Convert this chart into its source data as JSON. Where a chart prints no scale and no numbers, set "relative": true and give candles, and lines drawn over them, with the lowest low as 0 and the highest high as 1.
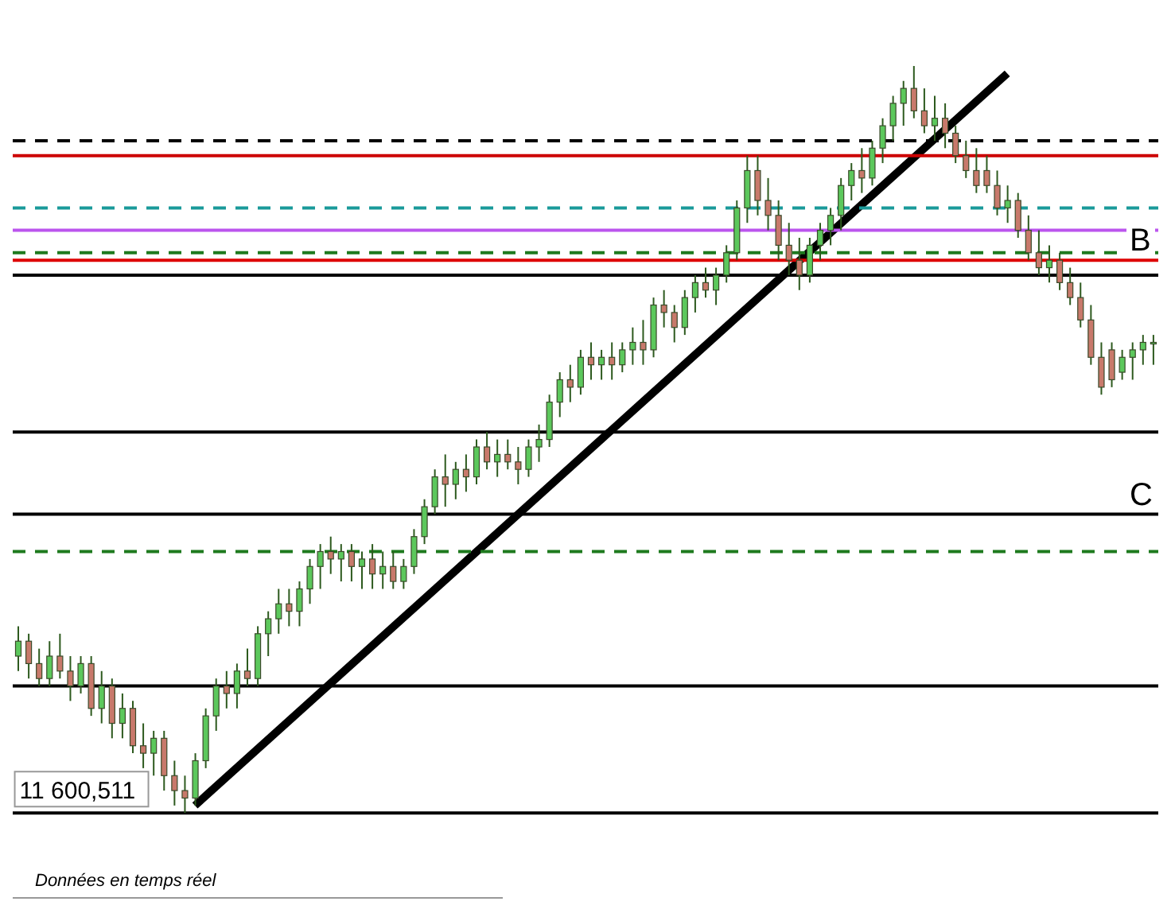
{
  "chart_data": {
    "type": "candlestick",
    "relative": true,
    "tick_labels": false,
    "categories": [
      null,
      null,
      null,
      null,
      null,
      null,
      null,
      null,
      null,
      null,
      null,
      null,
      null,
      null,
      null,
      null,
      null,
      null,
      null,
      null,
      null,
      null,
      null,
      null,
      null,
      null,
      null,
      null,
      null,
      null,
      null,
      null,
      null,
      null,
      null,
      null,
      null,
      null,
      null,
      null,
      null,
      null,
      null,
      null,
      null,
      null,
      null,
      null,
      null,
      null,
      null,
      null,
      null,
      null,
      null,
      null,
      null,
      null,
      null,
      null,
      null,
      null,
      null,
      null,
      null,
      null,
      null,
      null,
      null,
      null,
      null,
      null,
      null,
      null,
      null,
      null,
      null,
      null,
      null,
      null,
      null,
      null,
      null,
      null,
      null,
      null,
      null,
      null,
      null,
      null,
      null,
      null,
      null,
      null,
      null,
      null,
      null,
      null,
      null,
      null,
      null,
      null,
      null,
      null,
      null,
      null,
      null,
      null,
      null,
      null
    ],
    "ohlc": [
      [
        0.21,
        0.25,
        0.19,
        0.23
      ],
      [
        0.23,
        0.24,
        0.18,
        0.2
      ],
      [
        0.2,
        0.22,
        0.17,
        0.18
      ],
      [
        0.18,
        0.23,
        0.17,
        0.21
      ],
      [
        0.21,
        0.24,
        0.18,
        0.19
      ],
      [
        0.19,
        0.21,
        0.15,
        0.17
      ],
      [
        0.17,
        0.21,
        0.16,
        0.2
      ],
      [
        0.2,
        0.21,
        0.13,
        0.14
      ],
      [
        0.14,
        0.19,
        0.12,
        0.17
      ],
      [
        0.17,
        0.18,
        0.1,
        0.12
      ],
      [
        0.12,
        0.16,
        0.1,
        0.14
      ],
      [
        0.14,
        0.15,
        0.08,
        0.09
      ],
      [
        0.09,
        0.12,
        0.06,
        0.08
      ],
      [
        0.08,
        0.11,
        0.05,
        0.1
      ],
      [
        0.1,
        0.11,
        0.03,
        0.05
      ],
      [
        0.05,
        0.07,
        0.01,
        0.03
      ],
      [
        0.03,
        0.05,
        0,
        0.02
      ],
      [
        0.02,
        0.08,
        0.01,
        0.07
      ],
      [
        0.07,
        0.14,
        0.06,
        0.13
      ],
      [
        0.13,
        0.18,
        0.11,
        0.17
      ],
      [
        0.17,
        0.19,
        0.14,
        0.16
      ],
      [
        0.16,
        0.2,
        0.14,
        0.19
      ],
      [
        0.19,
        0.22,
        0.17,
        0.18
      ],
      [
        0.18,
        0.25,
        0.17,
        0.24
      ],
      [
        0.24,
        0.27,
        0.21,
        0.26
      ],
      [
        0.26,
        0.3,
        0.24,
        0.28
      ],
      [
        0.28,
        0.3,
        0.25,
        0.27
      ],
      [
        0.27,
        0.31,
        0.25,
        0.3
      ],
      [
        0.3,
        0.34,
        0.28,
        0.33
      ],
      [
        0.33,
        0.36,
        0.3,
        0.35
      ],
      [
        0.35,
        0.37,
        0.32,
        0.34
      ],
      [
        0.34,
        0.36,
        0.31,
        0.35
      ],
      [
        0.35,
        0.36,
        0.31,
        0.33
      ],
      [
        0.33,
        0.35,
        0.3,
        0.34
      ],
      [
        0.34,
        0.36,
        0.3,
        0.32
      ],
      [
        0.32,
        0.35,
        0.3,
        0.33
      ],
      [
        0.33,
        0.35,
        0.3,
        0.31
      ],
      [
        0.31,
        0.34,
        0.3,
        0.33
      ],
      [
        0.33,
        0.38,
        0.32,
        0.37
      ],
      [
        0.37,
        0.42,
        0.36,
        0.41
      ],
      [
        0.41,
        0.46,
        0.4,
        0.45
      ],
      [
        0.45,
        0.48,
        0.41,
        0.44
      ],
      [
        0.44,
        0.47,
        0.42,
        0.46
      ],
      [
        0.46,
        0.48,
        0.43,
        0.45
      ],
      [
        0.45,
        0.5,
        0.44,
        0.49
      ],
      [
        0.49,
        0.51,
        0.46,
        0.47
      ],
      [
        0.47,
        0.5,
        0.45,
        0.48
      ],
      [
        0.48,
        0.5,
        0.46,
        0.47
      ],
      [
        0.47,
        0.49,
        0.44,
        0.46
      ],
      [
        0.46,
        0.5,
        0.45,
        0.49
      ],
      [
        0.49,
        0.52,
        0.47,
        0.5
      ],
      [
        0.5,
        0.56,
        0.49,
        0.55
      ],
      [
        0.55,
        0.59,
        0.53,
        0.58
      ],
      [
        0.58,
        0.6,
        0.55,
        0.57
      ],
      [
        0.57,
        0.62,
        0.56,
        0.61
      ],
      [
        0.61,
        0.63,
        0.58,
        0.6
      ],
      [
        0.6,
        0.62,
        0.58,
        0.61
      ],
      [
        0.61,
        0.63,
        0.58,
        0.6
      ],
      [
        0.6,
        0.63,
        0.59,
        0.62
      ],
      [
        0.62,
        0.65,
        0.6,
        0.63
      ],
      [
        0.63,
        0.66,
        0.6,
        0.62
      ],
      [
        0.62,
        0.69,
        0.61,
        0.68
      ],
      [
        0.68,
        0.7,
        0.65,
        0.67
      ],
      [
        0.67,
        0.68,
        0.63,
        0.65
      ],
      [
        0.65,
        0.7,
        0.64,
        0.69
      ],
      [
        0.69,
        0.72,
        0.67,
        0.71
      ],
      [
        0.71,
        0.73,
        0.69,
        0.7
      ],
      [
        0.7,
        0.73,
        0.68,
        0.72
      ],
      [
        0.72,
        0.76,
        0.71,
        0.75
      ],
      [
        0.75,
        0.82,
        0.74,
        0.81
      ],
      [
        0.81,
        0.88,
        0.79,
        0.86
      ],
      [
        0.86,
        0.88,
        0.8,
        0.82
      ],
      [
        0.82,
        0.85,
        0.78,
        0.8
      ],
      [
        0.8,
        0.82,
        0.74,
        0.76
      ],
      [
        0.76,
        0.79,
        0.72,
        0.74
      ],
      [
        0.74,
        0.77,
        0.7,
        0.72
      ],
      [
        0.72,
        0.77,
        0.71,
        0.76
      ],
      [
        0.76,
        0.79,
        0.74,
        0.78
      ],
      [
        0.78,
        0.81,
        0.76,
        0.8
      ],
      [
        0.8,
        0.85,
        0.78,
        0.84
      ],
      [
        0.84,
        0.87,
        0.82,
        0.86
      ],
      [
        0.86,
        0.89,
        0.83,
        0.85
      ],
      [
        0.85,
        0.9,
        0.84,
        0.89
      ],
      [
        0.89,
        0.93,
        0.87,
        0.92
      ],
      [
        0.92,
        0.96,
        0.9,
        0.95
      ],
      [
        0.95,
        0.98,
        0.92,
        0.97
      ],
      [
        0.97,
        1,
        0.93,
        0.94
      ],
      [
        0.94,
        0.97,
        0.91,
        0.92
      ],
      [
        0.92,
        0.96,
        0.9,
        0.93
      ],
      [
        0.93,
        0.95,
        0.89,
        0.91
      ],
      [
        0.91,
        0.92,
        0.87,
        0.88
      ],
      [
        0.88,
        0.9,
        0.85,
        0.86
      ],
      [
        0.86,
        0.89,
        0.83,
        0.84
      ],
      [
        0.86,
        0.88,
        0.83,
        0.84
      ],
      [
        0.84,
        0.86,
        0.8,
        0.81
      ],
      [
        0.81,
        0.84,
        0.79,
        0.82
      ],
      [
        0.82,
        0.83,
        0.77,
        0.78
      ],
      [
        0.78,
        0.8,
        0.74,
        0.75
      ],
      [
        0.75,
        0.78,
        0.72,
        0.73
      ],
      [
        0.73,
        0.76,
        0.71,
        0.74
      ],
      [
        0.74,
        0.75,
        0.7,
        0.71
      ],
      [
        0.71,
        0.73,
        0.68,
        0.69
      ],
      [
        0.69,
        0.71,
        0.65,
        0.66
      ],
      [
        0.66,
        0.68,
        0.6,
        0.61
      ],
      [
        0.61,
        0.63,
        0.56,
        0.57
      ],
      [
        0.62,
        0.63,
        0.57,
        0.58
      ],
      [
        0.59,
        0.62,
        0.58,
        0.61
      ],
      [
        0.61,
        0.63,
        0.58,
        0.62
      ],
      [
        0.62,
        0.64,
        0.6,
        0.63
      ],
      [
        0.63,
        0.64,
        0.6,
        0.63
      ]
    ],
    "series": [
      {
        "type": "line",
        "color": "#000000",
        "values": [
          null,
          null,
          null,
          null,
          null,
          null,
          null,
          null,
          null,
          null,
          null,
          null,
          null,
          null,
          null,
          null,
          null,
          0.01,
          null,
          null,
          null,
          null,
          null,
          null,
          null,
          null,
          null,
          null,
          null,
          null,
          null,
          null,
          null,
          null,
          null,
          null,
          null,
          null,
          null,
          null,
          null,
          null,
          null,
          null,
          null,
          null,
          null,
          null,
          null,
          null,
          null,
          null,
          null,
          null,
          null,
          null,
          null,
          null,
          null,
          null,
          null,
          null,
          null,
          null,
          null,
          null,
          null,
          null,
          null,
          null,
          null,
          null,
          null,
          null,
          null,
          null,
          null,
          null,
          null,
          null,
          null,
          null,
          null,
          null,
          null,
          null,
          null,
          null,
          null,
          null,
          null,
          null,
          null,
          null,
          null,
          0.99,
          null,
          null,
          null,
          null,
          null,
          null,
          null,
          null,
          null,
          null,
          null,
          null,
          null,
          null
        ]
      }
    ],
    "ref_lines": [
      {
        "axis": "y",
        "value": 0.9,
        "color": "#000000",
        "line_style": "dashed"
      },
      {
        "axis": "y",
        "value": 0.88,
        "color": "#cc0000",
        "line_style": "solid"
      },
      {
        "axis": "y",
        "value": 0.81,
        "color": "#1a9a9a",
        "line_style": "dashed"
      },
      {
        "axis": "y",
        "value": 0.78,
        "color": "#bb55ee",
        "line_style": "solid"
      },
      {
        "axis": "y",
        "value": 0.75,
        "color": "#1e7a1e",
        "line_style": "dashed"
      },
      {
        "axis": "y",
        "value": 0.74,
        "color": "#dd0000",
        "line_style": "solid",
        "label": "B"
      },
      {
        "axis": "y",
        "value": 0.72,
        "color": "#000000",
        "line_style": "solid"
      },
      {
        "axis": "y",
        "value": 0.51,
        "color": "#000000",
        "line_style": "solid"
      },
      {
        "axis": "y",
        "value": 0.4,
        "color": "#000000",
        "line_style": "solid",
        "label": "C"
      },
      {
        "axis": "y",
        "value": 0.35,
        "color": "#1e7a1e",
        "line_style": "dashed"
      },
      {
        "axis": "y",
        "value": 0.17,
        "color": "#000000",
        "line_style": "solid"
      },
      {
        "axis": "y",
        "value": 0,
        "color": "#000000",
        "line_style": "solid"
      }
    ],
    "annotations": [
      {
        "text": "11 600,511",
        "y": 0
      },
      "Données en temps réel"
    ]
  }
}
